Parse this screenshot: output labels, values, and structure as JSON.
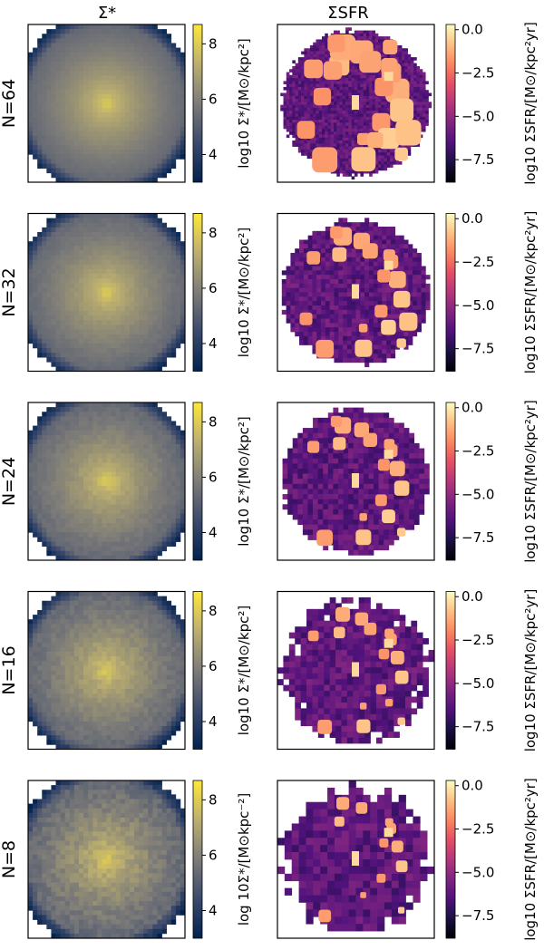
{
  "chart_data": {
    "type": "heatmap",
    "column_titles": [
      "Σ*",
      "ΣSFR"
    ],
    "rows": [
      {
        "label": "N=64",
        "n": 64,
        "mass_cbar_label": "log10 Σ*/[M⊙/kpc²]",
        "sfr_cbar_label": "log10 ΣSFR/[M⊙/kpc²yr]"
      },
      {
        "label": "N=32",
        "n": 32,
        "mass_cbar_label": "log10 Σ*/[M⊙/kpc²]",
        "sfr_cbar_label": "log10 ΣSFR/[M⊙/kpc²yr]"
      },
      {
        "label": "N=24",
        "n": 24,
        "mass_cbar_label": "log10 Σ*/[M⊙/kpc²]",
        "sfr_cbar_label": "log10 ΣSFR/[M⊙/kpc²yr]"
      },
      {
        "label": "N=16",
        "n": 16,
        "mass_cbar_label": "log10 Σ*/[M⊙/kpc²]",
        "sfr_cbar_label": "log10 ΣSFR/[M⊙/kpc²yr]"
      },
      {
        "label": "N=8",
        "n": 8,
        "mass_cbar_label": "log 10Σ*/[M⊙kpc⁻²]",
        "sfr_cbar_label": "log10 ΣSFR/[M⊙/kpc²yr]"
      }
    ],
    "mass_colorbar": {
      "colormap": "cividis",
      "range": [
        3.0,
        8.7
      ],
      "ticks": [
        4,
        6,
        8
      ],
      "tick_labels": [
        "4",
        "6",
        "8"
      ]
    },
    "sfr_colorbar": {
      "colormap": "magma",
      "range": [
        -8.8,
        0.3
      ],
      "ticks": [
        0.0,
        -2.5,
        -5.0,
        -7.5
      ],
      "tick_labels": [
        "0.0",
        "−2.5",
        "−5.0",
        "−7.5"
      ]
    },
    "mass_map": {
      "center_value": 8.3,
      "edge_value": 5.1,
      "noise_by_n": {
        "64": 0.05,
        "32": 0.1,
        "24": 0.15,
        "16": 0.22,
        "8": 0.32
      }
    },
    "sfr_map": {
      "background_value": -6.2,
      "clump_value": -1.2,
      "core_value": -0.4,
      "clumps_by_n": {
        "64": 26,
        "32": 22,
        "24": 20,
        "16": 18,
        "8": 14
      }
    },
    "grid": false
  }
}
